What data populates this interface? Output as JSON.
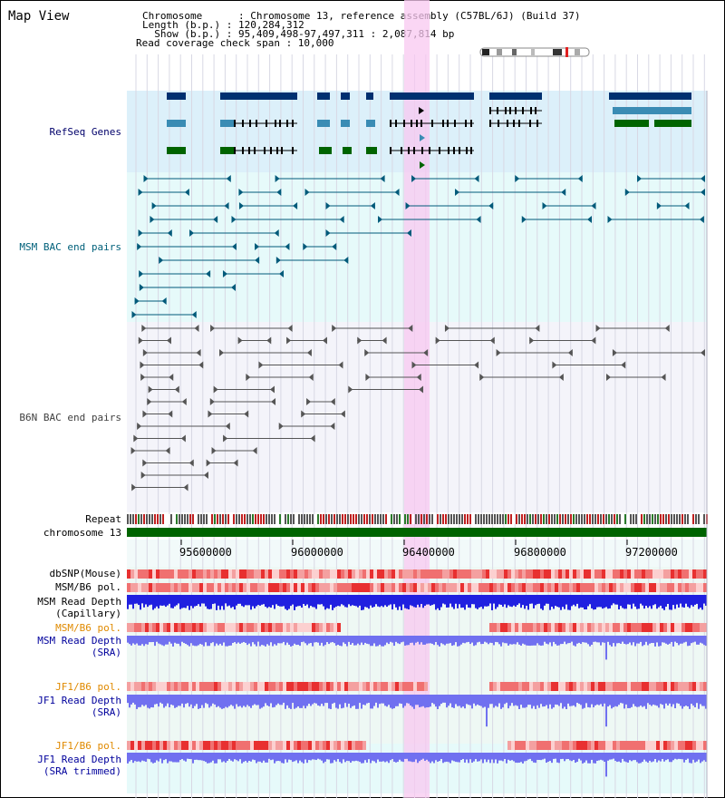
{
  "view_title": "Map View",
  "info": {
    "chromosome_line": "Chromosome      : Chromosome 13, reference assembly (C57BL/6J) (Build 37)",
    "length_line": "Length (b.p.) : 120,284,312",
    "show_line": "  Show (b.p.) : 95,409,498-97,497,311 : 2,087,814 bp",
    "coverage_line": "Read coverage check span : 10,000"
  },
  "tracks": {
    "refseq_genes": "RefSeq Genes",
    "msm_bac": "MSM BAC end pairs",
    "b6n_bac": "B6N BAC end pairs",
    "repeat": "Repeat",
    "chromosome": "chromosome 13",
    "dbsnp": "dbSNP(Mouse)",
    "msm_b6_pol": "MSM/B6 pol.",
    "msm_read_depth_cap_1": "MSM Read Depth",
    "msm_read_depth_cap_2": "(Capillary)",
    "msm_b6_pol_sra": "MSM/B6 pol.",
    "msm_read_depth_sra_1": "MSM Read Depth",
    "msm_read_depth_sra_2": "(SRA)",
    "jf1_b6_pol": "JF1/B6 pol.",
    "jf1_read_depth_1": "JF1 Read Depth",
    "jf1_read_depth_2": "(SRA)",
    "jf1_b6_pol_trim": "JF1/B6 pol.",
    "jf1_read_depth_trim_1": "JF1 Read Depth",
    "jf1_read_depth_trim_2": "(SRA trimmed)"
  },
  "axis": {
    "ticks": [
      "95600000",
      "96000000",
      "96400000",
      "96800000",
      "97200000"
    ]
  },
  "colors": {
    "refseq_bg": "#dcf0fa",
    "msm_bg": "#e6fafa",
    "b6n_bg": "#f4f4fa",
    "highlight": "#f8c8f0",
    "chromosome_bar": "#006400",
    "gene_dark": "#003070",
    "gene_mid": "#3a8cb4",
    "gene_green": "#006400",
    "msm_line": "#005a7a",
    "b6n_line": "#555555",
    "snp_red": "#e83030",
    "depth_blue": "#2020e0",
    "depth_light": "#7070f0"
  }
}
